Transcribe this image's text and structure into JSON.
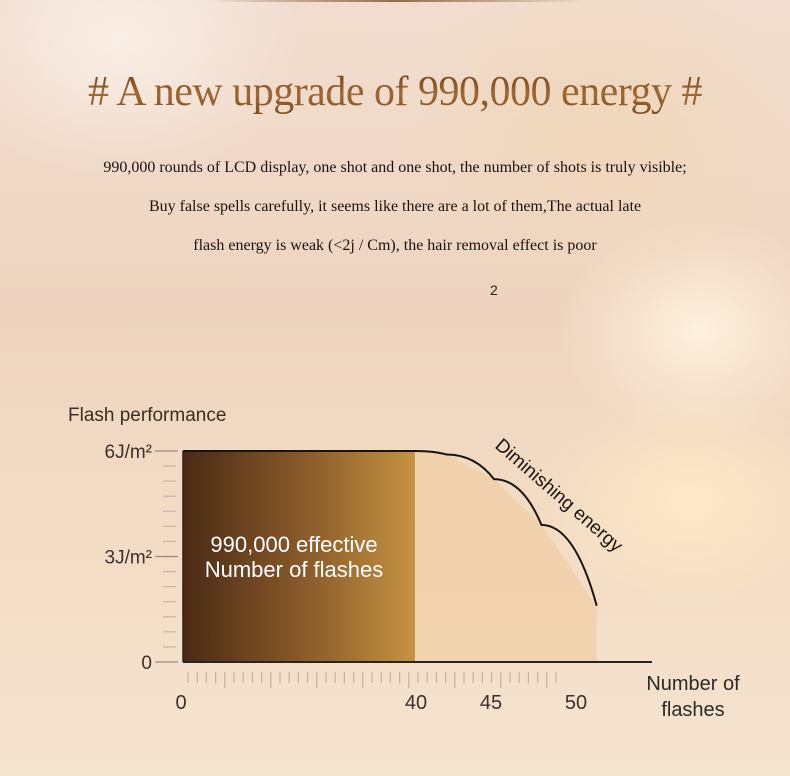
{
  "heading": {
    "title": "# A new upgrade of 990,000 energy #",
    "lines": [
      "990,000 rounds of LCD display, one shot and one shot, the number of shots is truly visible;",
      "Buy false spells carefully, it seems like there are a lot of them,The actual late",
      "flash energy is weak (<2j / Cm), the hair removal effect is poor"
    ],
    "note": "2"
  },
  "chart_data": {
    "type": "area",
    "ylabel": "Flash performance",
    "xlabel": "Number of flashes",
    "y_ticks": [
      {
        "value": 6,
        "label": "6J/m²"
      },
      {
        "value": 3,
        "label": "3J/m²"
      },
      {
        "value": 0,
        "label": "0"
      }
    ],
    "x_ticks": [
      {
        "value": 0,
        "label": "0"
      },
      {
        "value": 40,
        "label": "40"
      },
      {
        "value": 45,
        "label": "45"
      },
      {
        "value": 50,
        "label": "50"
      }
    ],
    "ylim": [
      0,
      6
    ],
    "series": [
      {
        "name": "Diminishing energy",
        "x": [
          0,
          40,
          42,
          45,
          48,
          51.5
        ],
        "y": [
          6,
          6,
          5.9,
          5.2,
          3.9,
          1.6
        ]
      }
    ],
    "highlight": {
      "x_start": 0,
      "x_end": 40,
      "label_line1": "990,000 effective",
      "label_line2": "Number of flashes"
    },
    "annotation": "Diminishing energy",
    "colors": {
      "band_dark": "#4a2a14",
      "band_light": "#c2903f",
      "tail_fill": "#f0c99a"
    }
  }
}
